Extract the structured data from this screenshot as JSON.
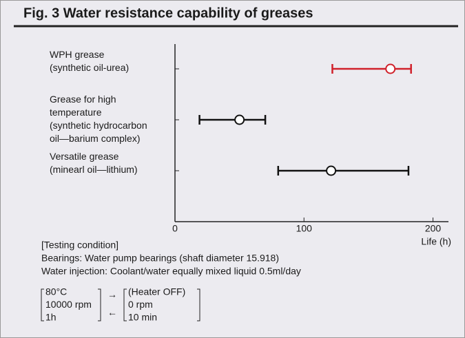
{
  "chart_data": {
    "type": "range",
    "title": "Fig. 3  Water resistance capability of greases",
    "categories": [
      [
        "WPH grease",
        "(synthetic oil-urea)"
      ],
      [
        "Grease for high",
        "temperature",
        "(synthetic hydrocarbon",
        "oil—barium complex)"
      ],
      [
        "Versatile grease",
        "(minearl oil—lithium)"
      ]
    ],
    "low": [
      122,
      19,
      80
    ],
    "values": [
      167,
      50,
      121
    ],
    "high": [
      183,
      70,
      181
    ],
    "colors": [
      "#d0202a",
      "#111111",
      "#111111"
    ],
    "xlim": [
      0,
      212
    ],
    "xticks": [
      0,
      100,
      200
    ],
    "xlabel": "Life (h)",
    "notes": [
      "[Testing condition]",
      "Bearings: Water pump bearings (shaft diameter 15.918)",
      "Water injection: Coolant/water equally mixed liquid 0.5ml/day"
    ],
    "conditions": {
      "left": [
        "80°C",
        "10000 rpm",
        "1h"
      ],
      "arrows": [
        "→",
        "←"
      ],
      "right": [
        "(Heater OFF)",
        "0 rpm",
        "10 min"
      ]
    }
  }
}
